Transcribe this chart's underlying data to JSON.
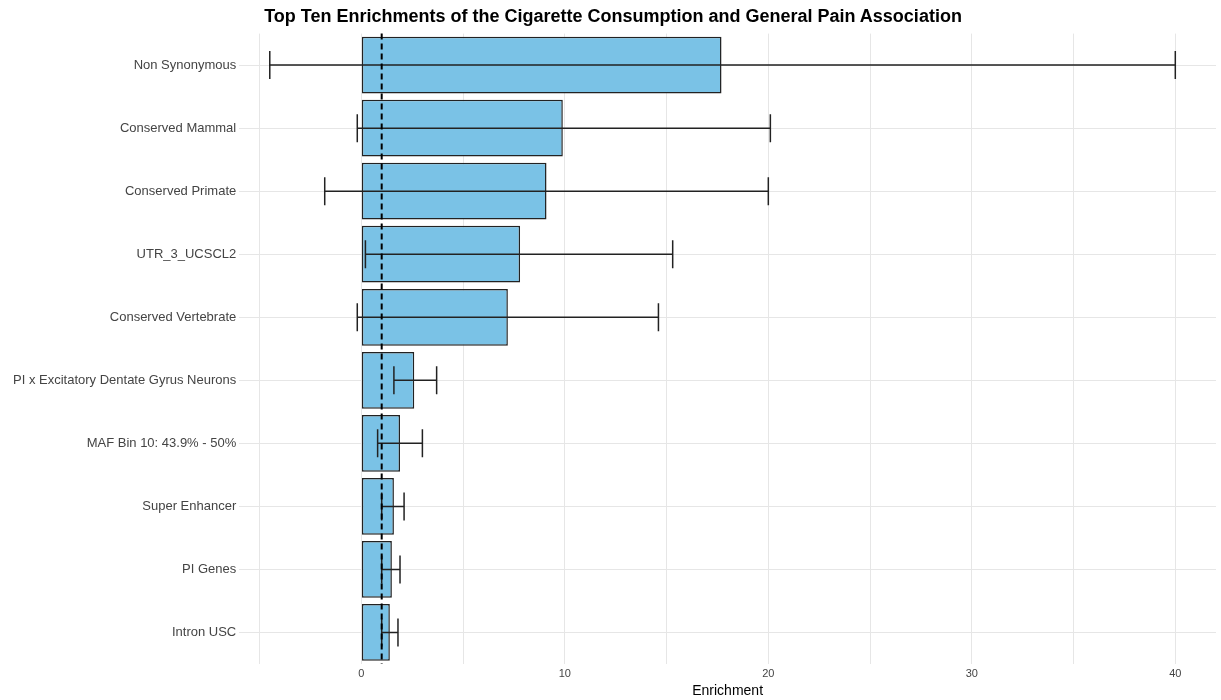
{
  "chart_data": {
    "type": "bar",
    "orientation": "horizontal",
    "title": "Top Ten Enrichments of the Cigarette Consumption and General Pain Association",
    "xlabel": "Enrichment",
    "categories": [
      "Non Synonymous",
      "Conserved Mammal",
      "Conserved Primate",
      "UTR_3_UCSCL2",
      "Conserved Vertebrate",
      "PI x Excitatory Dentate Gyrus Neurons",
      "MAF Bin 10: 43.9% - 50%",
      "Super Enhancer",
      "PI Genes",
      "Intron USC"
    ],
    "values": [
      17.7,
      9.9,
      9.1,
      7.8,
      7.2,
      2.6,
      1.9,
      1.6,
      1.5,
      1.4
    ],
    "errors": [
      [
        -4.5,
        40
      ],
      [
        -0.2,
        20.1
      ],
      [
        -1.8,
        20
      ],
      [
        0.2,
        15.3
      ],
      [
        -0.2,
        14.6
      ],
      [
        1.6,
        3.7
      ],
      [
        0.8,
        3
      ],
      [
        1.0,
        2.1
      ],
      [
        1.0,
        1.9
      ],
      [
        1.0,
        1.8
      ]
    ],
    "color": "#7ac2e6",
    "xlim": [
      -6,
      42
    ],
    "xticks": [
      {
        "value": -5,
        "label": null
      },
      0,
      {
        "value": 5,
        "label": null
      },
      10,
      {
        "value": 15,
        "label": null
      },
      20,
      {
        "value": 25,
        "label": null
      },
      30,
      {
        "value": 35,
        "label": null
      },
      40
    ],
    "ref_lines": [
      {
        "axis": "x",
        "value": 1,
        "line_style": "dashed",
        "color": "#000000"
      }
    ],
    "grid": true,
    "legend": false
  }
}
